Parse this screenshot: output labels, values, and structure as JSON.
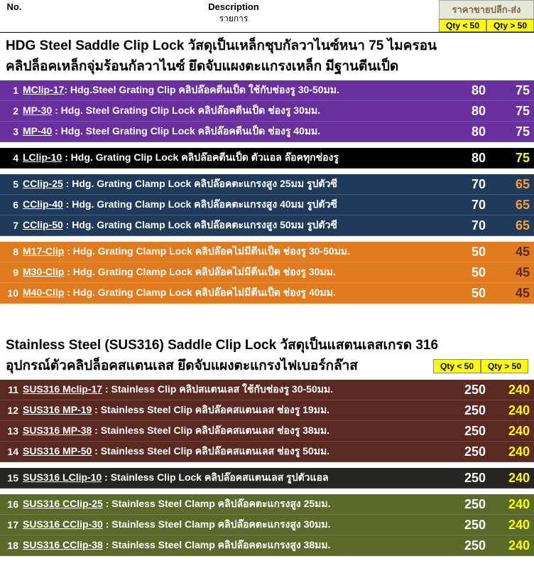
{
  "header": {
    "no": "No.",
    "desc": "Description",
    "desc_sub": "รายการ",
    "price_title": "ราคาขายปลีก-ส่ง",
    "qty_lt": "Qty < 50",
    "qty_gt": "Qty > 50"
  },
  "section1": {
    "title_line1": "HDG Steel Saddle Clip Lock   วัสดุเป็นเหล็กชุบกัลวาไนซ์หนา 75 ไมครอน",
    "title_line2": "คลิปล็อคเหล็กจุ่มร้อนกัลวาไนซ์ ยึดจับแผงตะแกรงเหล็ก มีฐานตีนเป็ด"
  },
  "section2": {
    "title_line1": "Stainless Steel (SUS316) Saddle Clip Lock   วัสดุเป็นแสตนเลสเกรด 316",
    "title_line2": "อุปกรณ์ตัวคลิปล็อคสแตนเลส ยึดจับแผงตะแกรงไฟเบอร์กล๊าส"
  },
  "colors": {
    "purple": "#6a2f9e",
    "black": "#000000",
    "navy": "#1f3a5a",
    "orange": "#e07b1f",
    "maroon": "#5a2a22",
    "dark": "#2a2420",
    "olive": "#5a6a2a",
    "yellow_txt": "#ffff00",
    "yellow_txt2": "#d6e000",
    "white": "#ffffff",
    "orange_txt": "#ff9a3a"
  },
  "groups": [
    {
      "bg": "#6a2f9e",
      "p2_color": "#ffffff",
      "rows": [
        {
          "no": "1",
          "code": "MClip-17",
          "rest": ": Hdg.Steel Grating Clip คลิปล๊อคตีนเป็ด ใช้กับช่องรู 30-50มม.",
          "p1": "80",
          "p2": "75"
        },
        {
          "no": "2",
          "code": "MP-30",
          "rest": " : Hdg. Steel Grating Clip Lock  คลิปล๊อคตีนเป็ด ช่องรู 30มม.",
          "p1": "80",
          "p2": "75"
        },
        {
          "no": "3",
          "code": "MP-40",
          "rest": " : Hdg. Steel Grating Clip Lock  คลิปล๊อคตีนเป็ด ช่องรู 40มม.",
          "p1": "80",
          "p2": "75"
        }
      ]
    },
    {
      "bg": "#000000",
      "p2_color": "#ffff00",
      "rows": [
        {
          "no": "4",
          "code": "LClip-10",
          "rest": " : Hdg. Grating Clip Lock  คลิปล๊อคตีนเป็ด ตัวแอล ล๊อคทุกช่องรู",
          "p1": "80",
          "p2": "75"
        }
      ]
    },
    {
      "bg": "#1f3a5a",
      "p2_color": "#ff9a3a",
      "rows": [
        {
          "no": "5",
          "code": "CClip-25",
          "rest": " : Hdg. Grating Clamp Lock  คลิปล๊อคตะแกรงสูง 25มม รูปตัวซี",
          "p1": "70",
          "p2": "65"
        },
        {
          "no": "6",
          "code": "CClip-40",
          "rest": " : Hdg. Grating Clamp Lock  คลิปล๊อคตะแกรงสูง 40มม รูปตัวซี",
          "p1": "70",
          "p2": "65"
        },
        {
          "no": "7",
          "code": "CClip-50",
          "rest": " : Hdg. Grating Clamp Lock  คลิปล๊อคตะแกรงสูง 50มม รูปตัวซี",
          "p1": "70",
          "p2": "65"
        }
      ]
    },
    {
      "bg": "#e07b1f",
      "p2_color": "#5a2a22",
      "rows": [
        {
          "no": "8",
          "code": "M17-Clip",
          "rest": " : Hdg. Grating Clamp Lock  คลิปล๊อคไม่มีตีนเป็ด ช่องรู 30-50มม.",
          "p1": "50",
          "p2": "45"
        },
        {
          "no": "9",
          "code": "M30-Clip",
          "rest": " : Hdg. Grating Clamp Lock  คลิปล๊อคไม่มีตีนเป็ด ช่องรู 30มม.",
          "p1": "50",
          "p2": "45"
        },
        {
          "no": "10",
          "code": "M40-Clip",
          "rest": " : Hdg. Grating Clamp Lock  คลิปล๊อคไม่มีตีนเป็ด ช่องรู 40มม.",
          "p1": "50",
          "p2": "45"
        }
      ]
    },
    {
      "bg": "#5a2a22",
      "p2_color": "#ffff00",
      "rows": [
        {
          "no": "11",
          "code": "SUS316 Mclip-17",
          "rest": " : Stainless Clip  คลิปสแตนเลส ใช้กับช่องรู 30-50มม.",
          "p1": "250",
          "p2": "240"
        },
        {
          "no": "12",
          "code": "SUS316 MP-19",
          "rest": " : Stainless Steel  Clip  คลิปล๊อคสแตนเลส ช่องรู 19มม.",
          "p1": "250",
          "p2": "240"
        },
        {
          "no": "13",
          "code": "SUS316 MP-38",
          "rest": " : Stainless Steel  Clip   คลิปล๊อคสแตนเลส ช่องรู 38มม.",
          "p1": "250",
          "p2": "240"
        },
        {
          "no": "14",
          "code": "SUS316 MP-50",
          "rest": " : Stainless Steel  Clip   คลิปล๊อคสแตนเลส ช่องรู 50มม.",
          "p1": "250",
          "p2": "240"
        }
      ]
    },
    {
      "bg": "#2a2420",
      "p2_color": "#ffff00",
      "rows": [
        {
          "no": "15",
          "code": "SUS316 LClip-10",
          "rest": " : Stainless  Clip Lock  คลิปล๊อคสแตนเลส รูปตัวแอล",
          "p1": "250",
          "p2": "240"
        }
      ]
    },
    {
      "bg": "#5a6a2a",
      "p2_color": "#ffff00",
      "rows": [
        {
          "no": "16",
          "code": "SUS316 CClip-25",
          "rest": " : Stainless Steel Clamp  คลิปล๊อคตะแกรงสูง 25มม.",
          "p1": "250",
          "p2": "240"
        },
        {
          "no": "17",
          "code": "SUS316 CClip-30",
          "rest": " : Stainless Steel Clamp  คลิปล๊อคตะแกรงสูง 30มม.",
          "p1": "250",
          "p2": "240"
        },
        {
          "no": "18",
          "code": "SUS316 CClip-38",
          "rest": " : Stainless Steel Clamp  คลิปล๊อคตะแกรงสูง 38มม.",
          "p1": "250",
          "p2": "240"
        }
      ]
    }
  ]
}
